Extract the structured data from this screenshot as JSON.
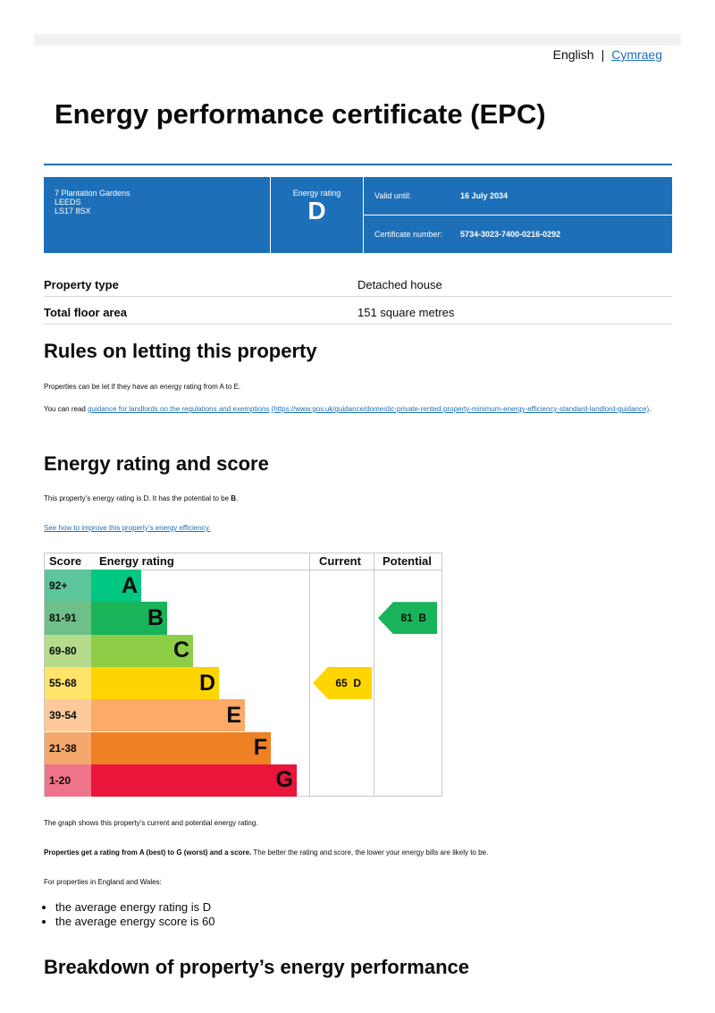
{
  "lang": {
    "english": "English",
    "separator": "|",
    "welsh": "Cymraeg"
  },
  "title": "Energy performance certificate (EPC)",
  "summary": {
    "address": [
      "7 Plantation Gardens",
      "LEEDS",
      "LS17 8SX"
    ],
    "rating_label": "Energy rating",
    "rating": "D",
    "valid_label": "Valid until:",
    "valid": "16 July 2034",
    "cert_label": "Certificate number:",
    "cert": "5734-3023-7400-0216-0292"
  },
  "facts": [
    {
      "k": "Property type",
      "v": "Detached house"
    },
    {
      "k": "Total floor area",
      "v": "151 square metres"
    }
  ],
  "letting": {
    "heading": "Rules on letting this property",
    "p1": "Properties can be let if they have an energy rating from A to E.",
    "p2_pre": "You can read ",
    "p2_link": "guidance for landlords on the regulations and exemptions",
    "p2_url": "(https://www.gov.uk/guidance/domestic-private-rented-property-minimum-energy-efficiency-standard-landlord-guidance)",
    "p2_post": "."
  },
  "score": {
    "heading": "Energy rating and score",
    "p1_pre": "This property’s energy rating is D. It has the potential to be ",
    "p1_bold": "B",
    "p1_post": ".",
    "link": "See how to improve this property’s energy efficiency.",
    "graph_note": "The graph shows this property’s current and potential energy rating.",
    "p3_bold": "Properties get a rating from A (best) to G (worst) and a score.",
    "p3_rest": " The better the rating and score, the lower your energy bills are likely to be.",
    "p4": "For properties in England and Wales:",
    "bullets": [
      "the average energy rating is D",
      "the average energy score is 60"
    ]
  },
  "chart_data": {
    "type": "table",
    "headers": [
      "Score",
      "Energy rating",
      "Current",
      "Potential"
    ],
    "bands": [
      {
        "score": "92+",
        "letter": "A",
        "color": "#00c781",
        "score_color": "#5dc59a"
      },
      {
        "score": "81-91",
        "letter": "B",
        "color": "#19b459",
        "score_color": "#6dc088"
      },
      {
        "score": "69-80",
        "letter": "C",
        "color": "#8dce46",
        "score_color": "#b5dc8d"
      },
      {
        "score": "55-68",
        "letter": "D",
        "color": "#ffd500",
        "score_color": "#ffe46a"
      },
      {
        "score": "39-54",
        "letter": "E",
        "color": "#fcaa65",
        "score_color": "#fdc99b"
      },
      {
        "score": "21-38",
        "letter": "F",
        "color": "#ef8023",
        "score_color": "#f4a86b"
      },
      {
        "score": "1-20",
        "letter": "G",
        "color": "#e9153b",
        "score_color": "#ef7389"
      }
    ],
    "current": {
      "score": 65,
      "letter": "D",
      "label": "65  D"
    },
    "potential": {
      "score": 81,
      "letter": "B",
      "label": "81  B"
    }
  },
  "breakdown_heading": "Breakdown of property’s energy performance"
}
